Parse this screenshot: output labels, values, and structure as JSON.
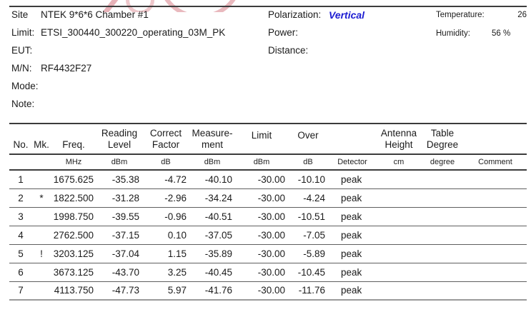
{
  "info_left": [
    {
      "label": "Site",
      "value": "NTEK 9*6*6 Chamber #1"
    },
    {
      "label": "Limit:",
      "value": "ETSI_300440_300220_operating_03M_PK"
    },
    {
      "label": "EUT:",
      "value": ""
    },
    {
      "label": "M/N:",
      "value": "RF4432F27"
    },
    {
      "label": "Mode:",
      "value": ""
    },
    {
      "label": "Note:",
      "value": ""
    }
  ],
  "info_mid": [
    {
      "label": "Polarization:",
      "value": "Vertical"
    },
    {
      "label": "Power:",
      "value": ""
    },
    {
      "label": "Distance:",
      "value": ""
    }
  ],
  "info_right": [
    {
      "label": "Temperature:",
      "value": "26"
    },
    {
      "label": "Humidity:",
      "value": "56 %"
    }
  ],
  "colors": {
    "polarization_value": "#1c1cd2",
    "watermark": "#d4737d",
    "rule_dark": "#3c3c3c",
    "rule_light": "#9a9a9a"
  },
  "table": {
    "headers": {
      "no": "No.",
      "mk": "Mk.",
      "freq": "Freq.",
      "reading_1": "Reading",
      "reading_2": "Level",
      "correct_1": "Correct",
      "correct_2": "Factor",
      "measurement_1": "Measure-",
      "measurement_2": "ment",
      "limit": "Limit",
      "over": "Over",
      "antenna_1": "Antenna",
      "antenna_2": "Height",
      "table_1": "Table",
      "table_2": "Degree"
    },
    "units": {
      "freq": "MHz",
      "reading": "dBm",
      "correct": "dB",
      "measurement": "dBm",
      "limit": "dBm",
      "over": "dB",
      "detector": "Detector",
      "antenna": "cm",
      "table": "degree",
      "comment": "Comment"
    },
    "row_keys": [
      "no",
      "mk",
      "freq",
      "reading",
      "correct",
      "measurement",
      "limit",
      "over",
      "detector",
      "antenna_height",
      "table_degree",
      "comment"
    ],
    "rows": [
      {
        "no": "1",
        "mk": "",
        "freq": "1675.625",
        "reading": "-35.38",
        "correct": "-4.72",
        "measurement": "-40.10",
        "limit": "-30.00",
        "over": "-10.10",
        "detector": "peak",
        "antenna_height": "",
        "table_degree": "",
        "comment": ""
      },
      {
        "no": "2",
        "mk": "*",
        "freq": "1822.500",
        "reading": "-31.28",
        "correct": "-2.96",
        "measurement": "-34.24",
        "limit": "-30.00",
        "over": "-4.24",
        "detector": "peak",
        "antenna_height": "",
        "table_degree": "",
        "comment": ""
      },
      {
        "no": "3",
        "mk": "",
        "freq": "1998.750",
        "reading": "-39.55",
        "correct": "-0.96",
        "measurement": "-40.51",
        "limit": "-30.00",
        "over": "-10.51",
        "detector": "peak",
        "antenna_height": "",
        "table_degree": "",
        "comment": ""
      },
      {
        "no": "4",
        "mk": "",
        "freq": "2762.500",
        "reading": "-37.15",
        "correct": "0.10",
        "measurement": "-37.05",
        "limit": "-30.00",
        "over": "-7.05",
        "detector": "peak",
        "antenna_height": "",
        "table_degree": "",
        "comment": ""
      },
      {
        "no": "5",
        "mk": "!",
        "freq": "3203.125",
        "reading": "-37.04",
        "correct": "1.15",
        "measurement": "-35.89",
        "limit": "-30.00",
        "over": "-5.89",
        "detector": "peak",
        "antenna_height": "",
        "table_degree": "",
        "comment": ""
      },
      {
        "no": "6",
        "mk": "",
        "freq": "3673.125",
        "reading": "-43.70",
        "correct": "3.25",
        "measurement": "-40.45",
        "limit": "-30.00",
        "over": "-10.45",
        "detector": "peak",
        "antenna_height": "",
        "table_degree": "",
        "comment": ""
      },
      {
        "no": "7",
        "mk": "",
        "freq": "4113.750",
        "reading": "-47.73",
        "correct": "5.97",
        "measurement": "-41.76",
        "limit": "-30.00",
        "over": "-11.76",
        "detector": "peak",
        "antenna_height": "",
        "table_degree": "",
        "comment": ""
      }
    ]
  }
}
